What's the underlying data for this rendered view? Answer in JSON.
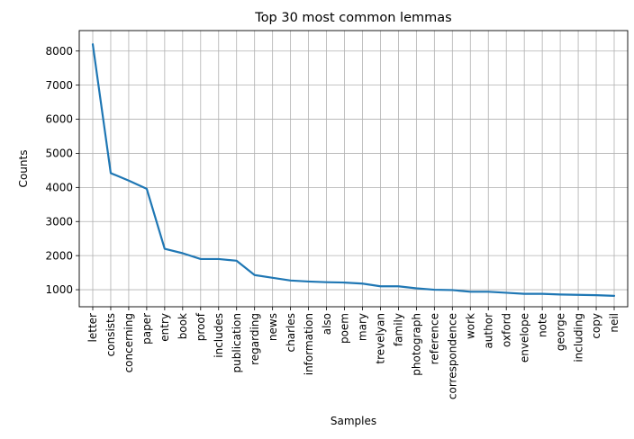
{
  "chart_data": {
    "type": "line",
    "title": "Top 30 most common lemmas",
    "xlabel": "Samples",
    "ylabel": "Counts",
    "ylim": [
      500,
      8600
    ],
    "yticks": [
      1000,
      2000,
      3000,
      4000,
      5000,
      6000,
      7000,
      8000
    ],
    "grid": true,
    "line_color": "#1f77b4",
    "categories": [
      "letter",
      "consists",
      "concerning",
      "paper",
      "entry",
      "book",
      "proof",
      "includes",
      "publication",
      "regarding",
      "news",
      "charles",
      "information",
      "also",
      "poem",
      "mary",
      "trevelyan",
      "family",
      "photograph",
      "reference",
      "correspondence",
      "work",
      "author",
      "oxford",
      "envelope",
      "note",
      "george",
      "including",
      "copy",
      "neil"
    ],
    "series": [
      {
        "values": [
          8200,
          4420,
          4200,
          3960,
          2200,
          2070,
          1900,
          1900,
          1850,
          1430,
          1350,
          1270,
          1240,
          1220,
          1210,
          1180,
          1100,
          1100,
          1040,
          1000,
          990,
          940,
          940,
          910,
          880,
          880,
          860,
          850,
          840,
          820
        ]
      }
    ]
  }
}
